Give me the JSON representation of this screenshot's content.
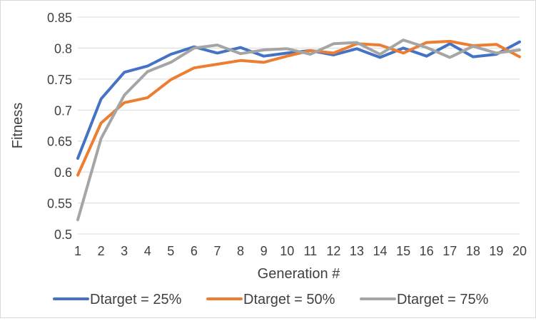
{
  "chart_data": {
    "type": "line",
    "xlabel": "Generation #",
    "ylabel": "Fitness",
    "x": [
      1,
      2,
      3,
      4,
      5,
      6,
      7,
      8,
      9,
      10,
      11,
      12,
      13,
      14,
      15,
      16,
      17,
      18,
      19,
      20
    ],
    "ylim": [
      0.5,
      0.85
    ],
    "yticks": [
      "0.5",
      "0.55",
      "0.6",
      "0.65",
      "0.7",
      "0.75",
      "0.8",
      "0.85"
    ],
    "grid": "horizontal",
    "legend": "bottom",
    "series": [
      {
        "name": "Dtarget = 25%",
        "color": "#4472C4",
        "values": [
          0.622,
          0.718,
          0.761,
          0.771,
          0.79,
          0.802,
          0.792,
          0.801,
          0.787,
          0.792,
          0.796,
          0.789,
          0.799,
          0.785,
          0.8,
          0.787,
          0.807,
          0.786,
          0.79,
          0.81
        ]
      },
      {
        "name": "Dtarget = 50%",
        "color": "#ED7D31",
        "values": [
          0.595,
          0.679,
          0.712,
          0.72,
          0.749,
          0.768,
          0.774,
          0.78,
          0.777,
          0.787,
          0.796,
          0.792,
          0.807,
          0.805,
          0.792,
          0.809,
          0.811,
          0.804,
          0.806,
          0.786
        ]
      },
      {
        "name": "Dtarget = 75%",
        "color": "#A5A5A5",
        "values": [
          0.523,
          0.654,
          0.724,
          0.762,
          0.777,
          0.8,
          0.805,
          0.791,
          0.797,
          0.799,
          0.79,
          0.807,
          0.809,
          0.79,
          0.813,
          0.801,
          0.785,
          0.803,
          0.792,
          0.797
        ]
      }
    ]
  }
}
